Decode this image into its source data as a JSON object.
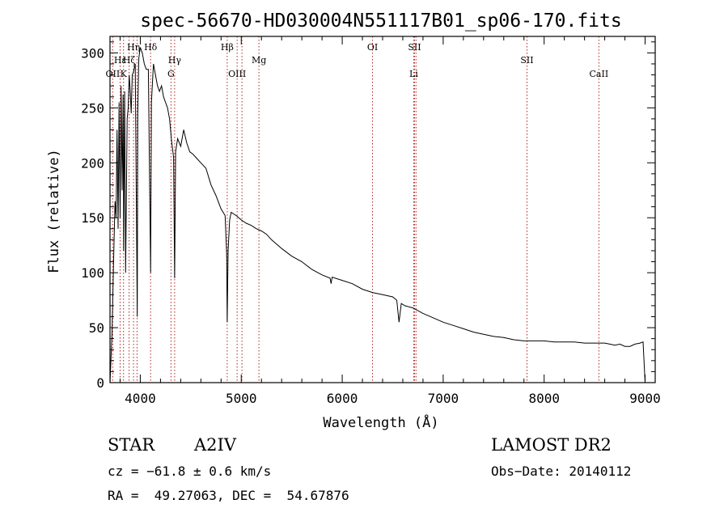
{
  "chart_data": {
    "type": "line",
    "title": "spec-56670-HD030004N551117B01_sp06-170.fits",
    "xlabel": "Wavelength (Å)",
    "ylabel": "Flux (relative)",
    "xlim": [
      3700,
      9100
    ],
    "ylim": [
      0,
      315
    ],
    "xticks": [
      4000,
      5000,
      6000,
      7000,
      8000,
      9000
    ],
    "yticks": [
      0,
      50,
      100,
      150,
      200,
      250,
      300
    ],
    "grid": false,
    "series": [
      {
        "x": [
          3700,
          3720,
          3735,
          3750,
          3760,
          3770,
          3780,
          3790,
          3800,
          3810,
          3820,
          3830,
          3835,
          3845,
          3855,
          3870,
          3880,
          3890,
          3900,
          3910,
          3920,
          3930,
          3950,
          3960,
          3970,
          3975,
          3985,
          4000,
          4020,
          4040,
          4060,
          4080,
          4095,
          4102,
          4110,
          4130,
          4150,
          4170,
          4190,
          4210,
          4230,
          4250,
          4270,
          4290,
          4310,
          4330,
          4340,
          4350,
          4370,
          4400,
          4430,
          4460,
          4490,
          4520,
          4550,
          4600,
          4650,
          4700,
          4750,
          4800,
          4840,
          4855,
          4861,
          4870,
          4885,
          4900,
          4950,
          5000,
          5050,
          5100,
          5150,
          5200,
          5250,
          5300,
          5400,
          5500,
          5600,
          5700,
          5800,
          5880,
          5890,
          5900,
          6000,
          6100,
          6200,
          6300,
          6400,
          6500,
          6540,
          6563,
          6585,
          6620,
          6700,
          6800,
          6900,
          7000,
          7100,
          7200,
          7300,
          7400,
          7500,
          7600,
          7700,
          7800,
          7900,
          8000,
          8100,
          8200,
          8300,
          8400,
          8500,
          8600,
          8650,
          8700,
          8750,
          8800,
          8850,
          8900,
          8950,
          8980,
          9000
        ],
        "y": [
          0,
          45,
          110,
          165,
          150,
          230,
          140,
          255,
          150,
          270,
          175,
          262,
          120,
          265,
          100,
          240,
          250,
          280,
          265,
          245,
          280,
          282,
          290,
          170,
          60,
          245,
          295,
          305,
          300,
          290,
          285,
          285,
          160,
          100,
          255,
          290,
          280,
          270,
          265,
          270,
          260,
          255,
          250,
          240,
          220,
          205,
          95,
          210,
          222,
          215,
          230,
          218,
          210,
          208,
          205,
          200,
          195,
          180,
          170,
          158,
          152,
          118,
          55,
          120,
          148,
          155,
          152,
          148,
          145,
          143,
          140,
          138,
          135,
          130,
          122,
          115,
          110,
          103,
          98,
          95,
          90,
          96,
          93,
          90,
          85,
          82,
          80,
          78,
          75,
          55,
          72,
          70,
          68,
          63,
          59,
          55,
          52,
          49,
          46,
          44,
          42,
          41,
          39,
          38,
          38,
          38,
          37,
          37,
          37,
          36,
          36,
          36,
          35,
          34,
          35,
          33,
          33,
          35,
          36,
          37,
          0
        ]
      }
    ],
    "lines": [
      {
        "x": 3727,
        "label": "OII",
        "row": 3
      },
      {
        "x": 3800,
        "label": "Hε",
        "row": 2
      },
      {
        "x": 3834,
        "label": "K",
        "row": 3
      },
      {
        "x": 3889,
        "label": "Hζ",
        "row": 2
      },
      {
        "x": 3933,
        "label": "Hη",
        "row": 1
      },
      {
        "x": 3968,
        "label": "",
        "row": 0
      },
      {
        "x": 4102,
        "label": "Hδ",
        "row": 1
      },
      {
        "x": 4304,
        "label": "G",
        "row": 3
      },
      {
        "x": 4340,
        "label": "Hγ",
        "row": 2
      },
      {
        "x": 4861,
        "label": "Hβ",
        "row": 1
      },
      {
        "x": 4959,
        "label": "OIII",
        "row": 3
      },
      {
        "x": 5007,
        "label": "",
        "row": 0
      },
      {
        "x": 5175,
        "label": "Mg",
        "row": 2
      },
      {
        "x": 6300,
        "label": "OI",
        "row": 1
      },
      {
        "x": 6708,
        "label": "Li",
        "row": 3
      },
      {
        "x": 6716,
        "label": "SII",
        "row": 1
      },
      {
        "x": 6731,
        "label": "",
        "row": 0
      },
      {
        "x": 7830,
        "label": "SII",
        "row": 2
      },
      {
        "x": 8542,
        "label": "CaII",
        "row": 3
      }
    ]
  },
  "info": {
    "obj_type": "STAR",
    "subclass": "A2IV",
    "cz": "cz = −61.8 ± 0.6 km/s",
    "coords": "RA =  49.27063, DEC =  54.67876",
    "survey": "LAMOST DR2",
    "obs_date": "Obs−Date: 20140112"
  },
  "colors": {
    "axis": "#000000",
    "line": "#000000",
    "marker_line": "#b22222"
  }
}
